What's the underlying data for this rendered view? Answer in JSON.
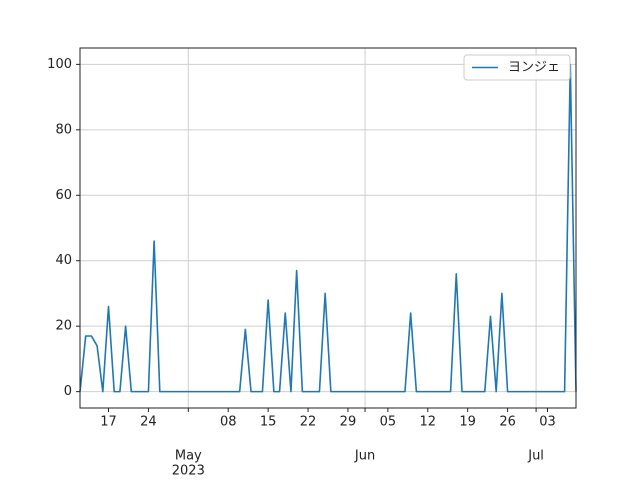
{
  "chart_data": {
    "type": "line",
    "x": [
      "2023-04-12",
      "2023-04-13",
      "2023-04-14",
      "2023-04-15",
      "2023-04-16",
      "2023-04-17",
      "2023-04-18",
      "2023-04-19",
      "2023-04-20",
      "2023-04-21",
      "2023-04-22",
      "2023-04-23",
      "2023-04-24",
      "2023-04-25",
      "2023-04-26",
      "2023-04-27",
      "2023-04-28",
      "2023-04-29",
      "2023-04-30",
      "2023-05-01",
      "2023-05-02",
      "2023-05-03",
      "2023-05-04",
      "2023-05-05",
      "2023-05-06",
      "2023-05-07",
      "2023-05-08",
      "2023-05-09",
      "2023-05-10",
      "2023-05-11",
      "2023-05-12",
      "2023-05-13",
      "2023-05-14",
      "2023-05-15",
      "2023-05-16",
      "2023-05-17",
      "2023-05-18",
      "2023-05-19",
      "2023-05-20",
      "2023-05-21",
      "2023-05-22",
      "2023-05-23",
      "2023-05-24",
      "2023-05-25",
      "2023-05-26",
      "2023-05-27",
      "2023-05-28",
      "2023-05-29",
      "2023-05-30",
      "2023-05-31",
      "2023-06-01",
      "2023-06-02",
      "2023-06-03",
      "2023-06-04",
      "2023-06-05",
      "2023-06-06",
      "2023-06-07",
      "2023-06-08",
      "2023-06-09",
      "2023-06-10",
      "2023-06-11",
      "2023-06-12",
      "2023-06-13",
      "2023-06-14",
      "2023-06-15",
      "2023-06-16",
      "2023-06-17",
      "2023-06-18",
      "2023-06-19",
      "2023-06-20",
      "2023-06-21",
      "2023-06-22",
      "2023-06-23",
      "2023-06-24",
      "2023-06-25",
      "2023-06-26",
      "2023-06-27",
      "2023-06-28",
      "2023-06-29",
      "2023-06-30",
      "2023-07-01",
      "2023-07-02",
      "2023-07-03",
      "2023-07-04",
      "2023-07-05",
      "2023-07-06",
      "2023-07-07",
      "2023-07-08"
    ],
    "series": [
      {
        "name": "ヨンジェ",
        "color": "#1f77b4",
        "values": [
          0,
          17,
          17,
          14,
          0,
          26,
          0,
          0,
          20,
          0,
          0,
          0,
          0,
          46,
          0,
          0,
          0,
          0,
          0,
          0,
          0,
          0,
          0,
          0,
          0,
          0,
          0,
          0,
          0,
          19,
          0,
          0,
          0,
          28,
          0,
          0,
          24,
          0,
          37,
          0,
          0,
          0,
          0,
          30,
          0,
          0,
          0,
          0,
          0,
          0,
          0,
          0,
          0,
          0,
          0,
          0,
          0,
          0,
          24,
          0,
          0,
          0,
          0,
          0,
          0,
          0,
          36,
          0,
          0,
          0,
          0,
          0,
          23,
          0,
          30,
          0,
          0,
          0,
          0,
          0,
          0,
          0,
          0,
          0,
          0,
          0,
          100,
          0
        ]
      }
    ],
    "xlim": [
      "2023-04-12",
      "2023-07-08"
    ],
    "xticks": [
      {
        "value": "2023-04-17",
        "label": "17"
      },
      {
        "value": "2023-04-24",
        "label": "24"
      },
      {
        "value": "2023-05-08",
        "label": "08"
      },
      {
        "value": "2023-05-15",
        "label": "15"
      },
      {
        "value": "2023-05-22",
        "label": "22"
      },
      {
        "value": "2023-05-29",
        "label": "29"
      },
      {
        "value": "2023-06-05",
        "label": "05"
      },
      {
        "value": "2023-06-12",
        "label": "12"
      },
      {
        "value": "2023-06-19",
        "label": "19"
      },
      {
        "value": "2023-06-26",
        "label": "26"
      },
      {
        "value": "2023-07-03",
        "label": "03"
      }
    ],
    "xticks_month": [
      {
        "value": "2023-05-01",
        "label": "May"
      },
      {
        "value": "2023-06-01",
        "label": "Jun"
      },
      {
        "value": "2023-07-01",
        "label": "Jul"
      }
    ],
    "x_year_label": "2023",
    "ylim": [
      -5,
      105
    ],
    "yticks": [
      0,
      20,
      40,
      60,
      80,
      100
    ],
    "grid": true,
    "legend": "upper right"
  }
}
